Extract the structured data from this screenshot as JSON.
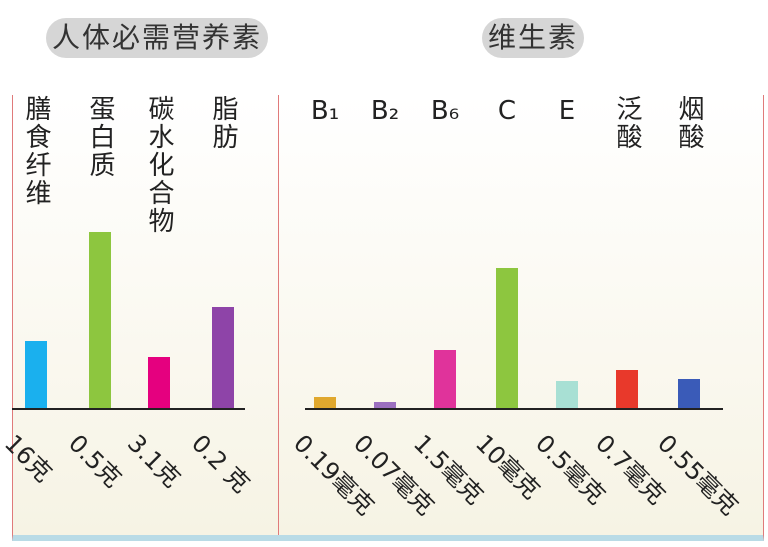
{
  "titles": {
    "left": "人体必需营养素",
    "right": "维生素"
  },
  "left": {
    "items": [
      {
        "label": "膳食纤维",
        "amount": "16克"
      },
      {
        "label": "蛋白质",
        "amount": "0.5克"
      },
      {
        "label": "碳水化合物",
        "amount": "3.1克"
      },
      {
        "label": "脂肪",
        "amount": "0.2 克"
      }
    ]
  },
  "right": {
    "items": [
      {
        "label": "B₁",
        "amount": "0.19毫克"
      },
      {
        "label": "B₂",
        "amount": "0.07毫克"
      },
      {
        "label": "B₆",
        "amount": "1.5毫克"
      },
      {
        "label": "C",
        "amount": "10毫克"
      },
      {
        "label": "E",
        "amount": "0.5毫克"
      },
      {
        "label": "泛酸",
        "amount": "0.7毫克"
      },
      {
        "label": "烟酸",
        "amount": "0.55毫克"
      }
    ]
  }
}
